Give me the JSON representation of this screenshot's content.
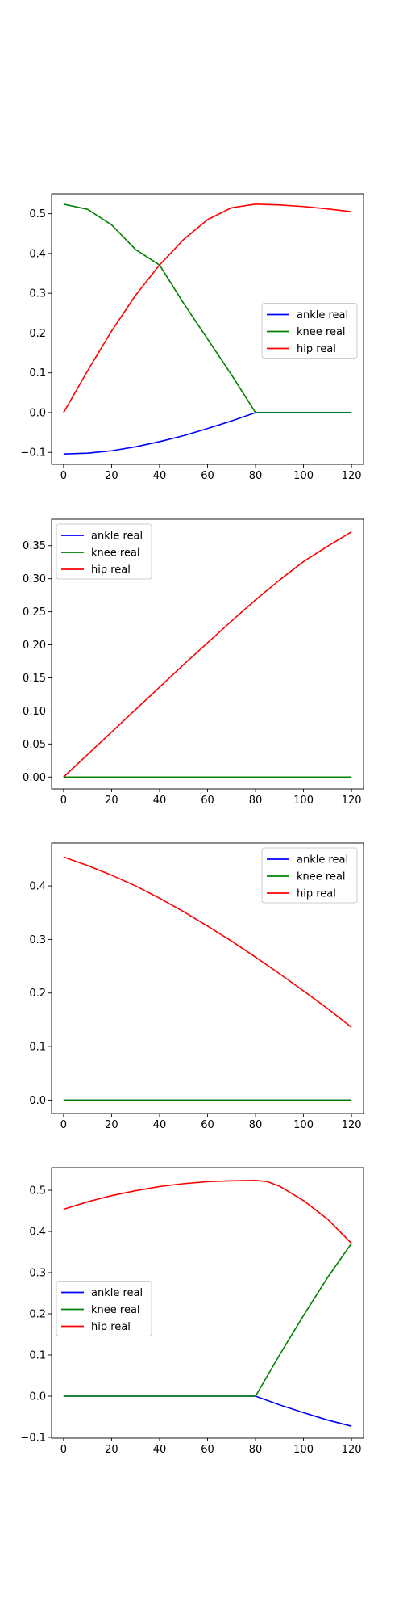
{
  "colors": {
    "ankle": "#0000ff",
    "knee": "#008000",
    "hip": "#ff0000",
    "axis": "#000000",
    "background": "#ffffff",
    "legend_border": "#cccccc"
  },
  "chart_data": [
    {
      "type": "line",
      "title": "",
      "xlabel": "",
      "ylabel": "",
      "xlim": [
        -5,
        125
      ],
      "ylim": [
        -0.13,
        0.55
      ],
      "xticks": [
        0,
        20,
        40,
        60,
        80,
        100,
        120
      ],
      "xtick_labels": [
        "0",
        "20",
        "40",
        "60",
        "80",
        "100",
        "120"
      ],
      "yticks": [
        -0.1,
        0.0,
        0.1,
        0.2,
        0.3,
        0.4,
        0.5
      ],
      "ytick_labels": [
        "−0.1",
        "0.0",
        "0.1",
        "0.2",
        "0.3",
        "0.4",
        "0.5"
      ],
      "grid": false,
      "legend": "center-right",
      "series": [
        {
          "name": "ankle real",
          "color": "#0000ff",
          "x": [
            0,
            10,
            20,
            30,
            40,
            50,
            60,
            70,
            80,
            90,
            100,
            110,
            120
          ],
          "y": [
            -0.104,
            -0.102,
            -0.096,
            -0.086,
            -0.073,
            -0.058,
            -0.04,
            -0.021,
            0.0,
            0.0,
            0.0,
            0.0,
            0.0
          ]
        },
        {
          "name": "knee real",
          "color": "#008000",
          "x": [
            0,
            10,
            20,
            30,
            40,
            50,
            60,
            70,
            80,
            90,
            100,
            110,
            120
          ],
          "y": [
            0.524,
            0.511,
            0.472,
            0.41,
            0.371,
            0.275,
            0.185,
            0.095,
            0.0,
            0.0,
            0.0,
            0.0,
            0.0
          ]
        },
        {
          "name": "hip real",
          "color": "#ff0000",
          "x": [
            0,
            10,
            20,
            30,
            40,
            50,
            60,
            70,
            80,
            90,
            100,
            110,
            120
          ],
          "y": [
            0.0,
            0.105,
            0.205,
            0.295,
            0.371,
            0.435,
            0.485,
            0.515,
            0.524,
            0.522,
            0.518,
            0.512,
            0.505
          ]
        }
      ]
    },
    {
      "type": "line",
      "title": "",
      "xlabel": "",
      "ylabel": "",
      "xlim": [
        -5,
        125
      ],
      "ylim": [
        -0.018,
        0.39
      ],
      "xticks": [
        0,
        20,
        40,
        60,
        80,
        100,
        120
      ],
      "xtick_labels": [
        "0",
        "20",
        "40",
        "60",
        "80",
        "100",
        "120"
      ],
      "yticks": [
        0.0,
        0.05,
        0.1,
        0.15,
        0.2,
        0.25,
        0.3,
        0.35
      ],
      "ytick_labels": [
        "0.00",
        "0.05",
        "0.10",
        "0.15",
        "0.20",
        "0.25",
        "0.30",
        "0.35"
      ],
      "grid": false,
      "legend": "upper-left",
      "series": [
        {
          "name": "ankle real",
          "color": "#0000ff",
          "x": [
            0,
            120
          ],
          "y": [
            0.0,
            0.0
          ]
        },
        {
          "name": "knee real",
          "color": "#008000",
          "x": [
            0,
            120
          ],
          "y": [
            0.0,
            0.0
          ]
        },
        {
          "name": "hip real",
          "color": "#ff0000",
          "x": [
            0,
            10,
            20,
            30,
            40,
            50,
            60,
            70,
            80,
            90,
            100,
            110,
            120
          ],
          "y": [
            0.0,
            0.034,
            0.068,
            0.102,
            0.136,
            0.17,
            0.203,
            0.236,
            0.268,
            0.298,
            0.326,
            0.349,
            0.371
          ]
        }
      ]
    },
    {
      "type": "line",
      "title": "",
      "xlabel": "",
      "ylabel": "",
      "xlim": [
        -5,
        125
      ],
      "ylim": [
        -0.025,
        0.48
      ],
      "xticks": [
        0,
        20,
        40,
        60,
        80,
        100,
        120
      ],
      "xtick_labels": [
        "0",
        "20",
        "40",
        "60",
        "80",
        "100",
        "120"
      ],
      "yticks": [
        0.0,
        0.1,
        0.2,
        0.3,
        0.4
      ],
      "ytick_labels": [
        "0.0",
        "0.1",
        "0.2",
        "0.3",
        "0.4"
      ],
      "grid": false,
      "legend": "upper-right",
      "series": [
        {
          "name": "ankle real",
          "color": "#0000ff",
          "x": [
            0,
            120
          ],
          "y": [
            0.0,
            0.0
          ]
        },
        {
          "name": "knee real",
          "color": "#008000",
          "x": [
            0,
            120
          ],
          "y": [
            0.0,
            0.0
          ]
        },
        {
          "name": "hip real",
          "color": "#ff0000",
          "x": [
            0,
            10,
            20,
            30,
            40,
            50,
            60,
            70,
            80,
            90,
            100,
            110,
            120
          ],
          "y": [
            0.454,
            0.438,
            0.42,
            0.4,
            0.377,
            0.352,
            0.325,
            0.297,
            0.267,
            0.236,
            0.204,
            0.171,
            0.136
          ]
        }
      ]
    },
    {
      "type": "line",
      "title": "",
      "xlabel": "",
      "ylabel": "",
      "xlim": [
        -5,
        125
      ],
      "ylim": [
        -0.102,
        0.555
      ],
      "xticks": [
        0,
        20,
        40,
        60,
        80,
        100,
        120
      ],
      "xtick_labels": [
        "0",
        "20",
        "40",
        "60",
        "80",
        "100",
        "120"
      ],
      "yticks": [
        -0.1,
        0.0,
        0.1,
        0.2,
        0.3,
        0.4,
        0.5
      ],
      "ytick_labels": [
        "−0.1",
        "0.0",
        "0.1",
        "0.2",
        "0.3",
        "0.4",
        "0.5"
      ],
      "grid": false,
      "legend": "center-left",
      "series": [
        {
          "name": "ankle real",
          "color": "#0000ff",
          "x": [
            0,
            80,
            90,
            100,
            110,
            120
          ],
          "y": [
            0.0,
            0.0,
            -0.021,
            -0.04,
            -0.058,
            -0.073
          ]
        },
        {
          "name": "knee real",
          "color": "#008000",
          "x": [
            0,
            80,
            90,
            100,
            110,
            120
          ],
          "y": [
            0.0,
            0.0,
            0.1,
            0.196,
            0.288,
            0.371
          ]
        },
        {
          "name": "hip real",
          "color": "#ff0000",
          "x": [
            0,
            10,
            20,
            30,
            40,
            50,
            60,
            70,
            80,
            85,
            90,
            100,
            110,
            120
          ],
          "y": [
            0.454,
            0.472,
            0.487,
            0.499,
            0.509,
            0.516,
            0.521,
            0.523,
            0.524,
            0.521,
            0.51,
            0.475,
            0.43,
            0.371
          ]
        }
      ]
    }
  ]
}
